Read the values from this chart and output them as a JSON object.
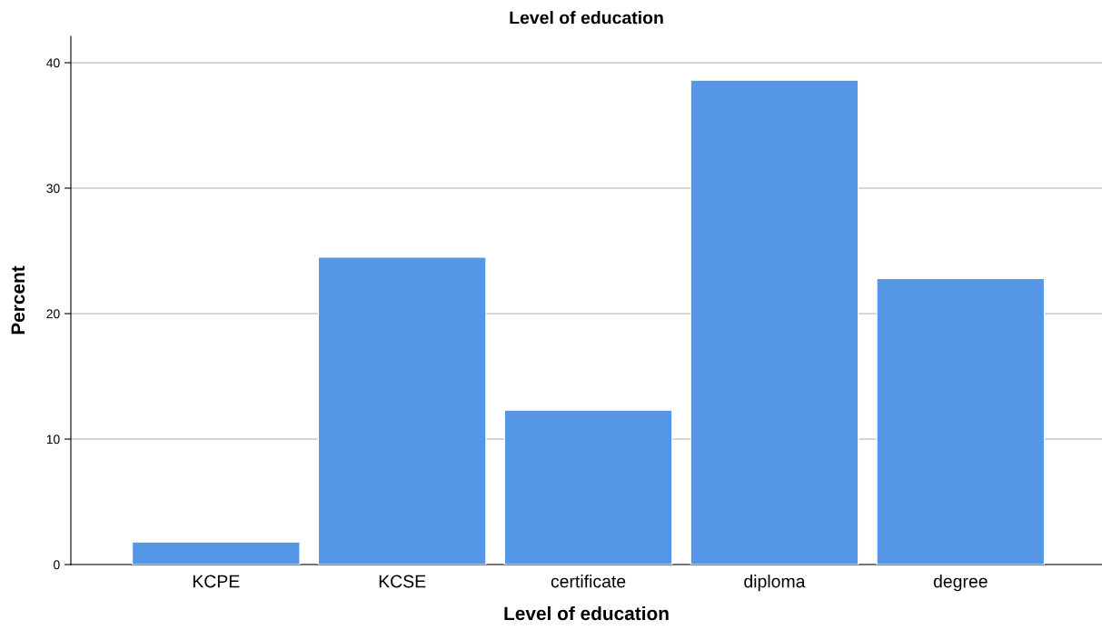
{
  "chart_data": {
    "type": "bar",
    "title": "Level of education",
    "xlabel": "Level of education",
    "ylabel": "Percent",
    "categories": [
      "KCPE",
      "KCSE",
      "certificate",
      "diploma",
      "degree"
    ],
    "values": [
      1.8,
      24.5,
      12.3,
      38.6,
      22.8
    ],
    "color": "#5596e6",
    "ylim": [
      0,
      42.1
    ],
    "yticks": [
      0,
      10,
      20,
      30,
      40
    ],
    "grid": "y",
    "legend": false
  }
}
